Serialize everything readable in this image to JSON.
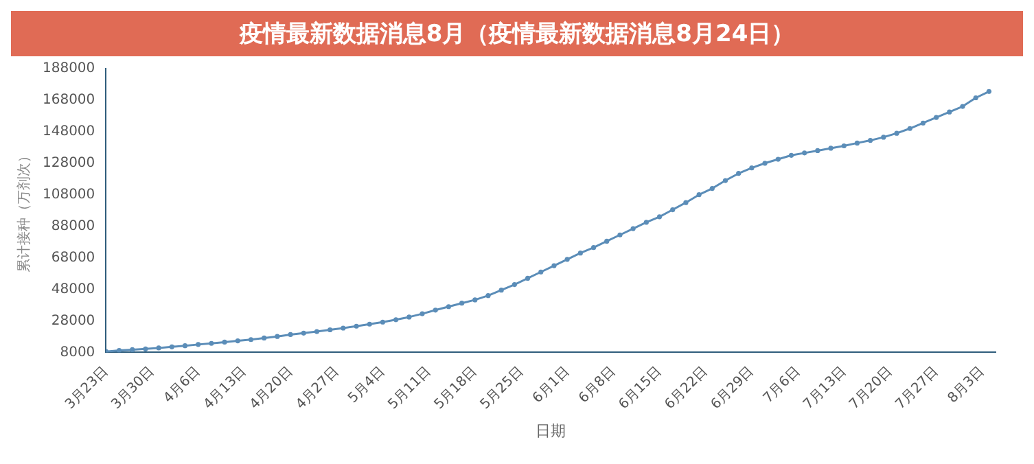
{
  "chart_data": {
    "type": "line",
    "title": "疫情最新数据消息8月（疫情最新数据消息8月24日）",
    "xlabel": "日期",
    "ylabel": "累计接种（万剂次）",
    "x": [
      "--03-23",
      "--03-25",
      "--03-27",
      "--03-29",
      "--03-31",
      "--04-02",
      "--04-04",
      "--04-06",
      "--04-08",
      "--04-10",
      "--04-12",
      "--04-14",
      "--04-16",
      "--04-18",
      "--04-20",
      "--04-22",
      "--04-24",
      "--04-26",
      "--04-28",
      "--04-30",
      "--05-02",
      "--05-04",
      "--05-06",
      "--05-08",
      "--05-10",
      "--05-12",
      "--05-14",
      "--05-16",
      "--05-18",
      "--05-20",
      "--05-22",
      "--05-24",
      "--05-26",
      "--05-28",
      "--05-30",
      "--06-01",
      "--06-03",
      "--06-05",
      "--06-07",
      "--06-09",
      "--06-11",
      "--06-13",
      "--06-15",
      "--06-17",
      "--06-19",
      "--06-21",
      "--06-23",
      "--06-25",
      "--06-27",
      "--06-29",
      "--07-01",
      "--07-03",
      "--07-05",
      "--07-07",
      "--07-09",
      "--07-11",
      "--07-13",
      "--07-15",
      "--07-17",
      "--07-19",
      "--07-21",
      "--07-23",
      "--07-25",
      "--07-27",
      "--07-29",
      "--07-31",
      "--08-02",
      "--08-04"
    ],
    "series": [
      {
        "color": "#5b8db8",
        "values": [
          8500,
          9200,
          9700,
          10200,
          10800,
          11500,
          12200,
          13000,
          13700,
          14500,
          15300,
          16100,
          17100,
          18100,
          19300,
          20200,
          21200,
          22300,
          23400,
          24600,
          25900,
          27200,
          28700,
          30400,
          32500,
          34800,
          37000,
          39200,
          41300,
          44000,
          47500,
          51000,
          55000,
          59000,
          63000,
          67000,
          71000,
          74500,
          78500,
          82500,
          86500,
          90500,
          94000,
          98500,
          103000,
          108000,
          112000,
          117000,
          121500,
          125000,
          128000,
          130500,
          133000,
          134500,
          136000,
          137500,
          139000,
          140800,
          142500,
          144500,
          147000,
          150000,
          153500,
          157000,
          160500,
          164000,
          169500,
          173500
        ]
      }
    ],
    "xlim": [
      "--03-23",
      "--08-05"
    ],
    "xticks": [
      {
        "value": "--03-23",
        "label": "3月23日"
      },
      {
        "value": "--03-30",
        "label": "3月30日"
      },
      {
        "value": "--04-06",
        "label": "4月6日"
      },
      {
        "value": "--04-13",
        "label": "4月13日"
      },
      {
        "value": "--04-20",
        "label": "4月20日"
      },
      {
        "value": "--04-27",
        "label": "4月27日"
      },
      {
        "value": "--05-04",
        "label": "5月4日"
      },
      {
        "value": "--05-11",
        "label": "5月11日"
      },
      {
        "value": "--05-18",
        "label": "5月18日"
      },
      {
        "value": "--05-25",
        "label": "5月25日"
      },
      {
        "value": "--06-01",
        "label": "6月1日"
      },
      {
        "value": "--06-08",
        "label": "6月8日"
      },
      {
        "value": "--06-15",
        "label": "6月15日"
      },
      {
        "value": "--06-22",
        "label": "6月22日"
      },
      {
        "value": "--06-29",
        "label": "6月29日"
      },
      {
        "value": "--07-06",
        "label": "7月6日"
      },
      {
        "value": "--07-13",
        "label": "7月13日"
      },
      {
        "value": "--07-20",
        "label": "7月20日"
      },
      {
        "value": "--07-27",
        "label": "7月27日"
      },
      {
        "value": "--08-03",
        "label": "8月3日"
      }
    ],
    "ylim": [
      8000,
      188000
    ],
    "yticks": [
      8000,
      28000,
      48000,
      68000,
      88000,
      108000,
      128000,
      148000,
      168000,
      188000
    ],
    "grid": false,
    "legend": false,
    "marker": "circle",
    "line_style": "solid"
  }
}
